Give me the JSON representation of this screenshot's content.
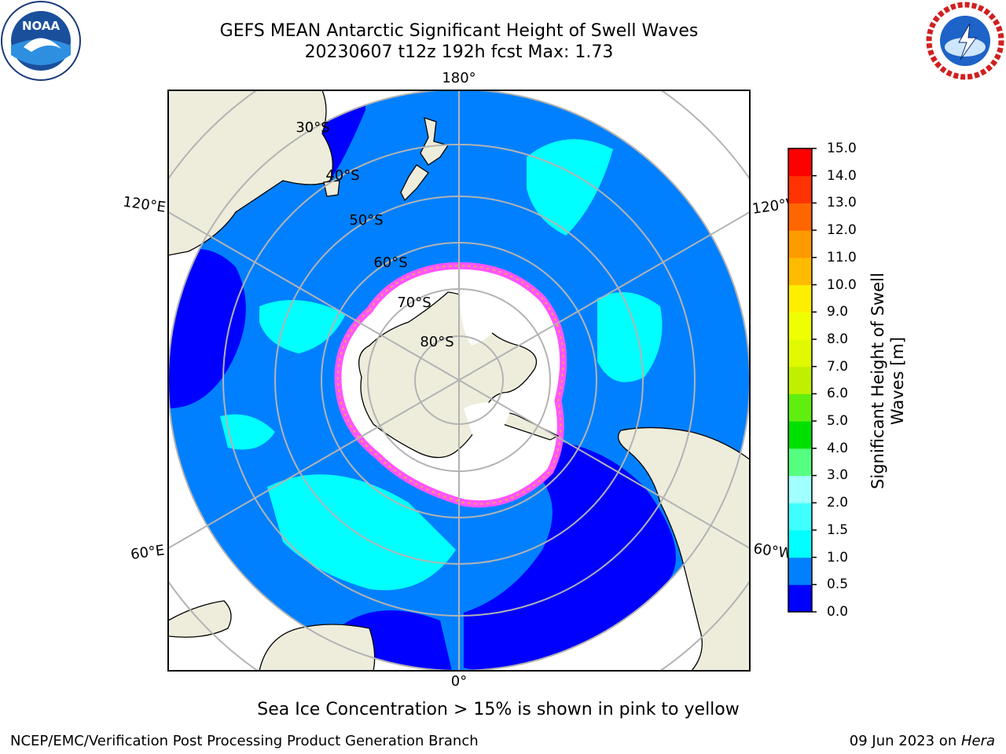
{
  "title": {
    "line1": "GEFS MEAN Antarctic Significant Height of Swell Waves",
    "line2": "20230607 t12z 192h fcst   Max: 1.73"
  },
  "map": {
    "projection": "south-polar-stereographic",
    "lon_labels": {
      "top": "180°",
      "bottom": "0°",
      "upper_left": "120°E",
      "upper_right": "120°W",
      "lower_left": "60°E",
      "lower_right": "60°W"
    },
    "lat_labels": [
      "30°S",
      "40°S",
      "50°S",
      "60°S",
      "70°S",
      "80°S"
    ],
    "colors": {
      "land": "#eeeddc",
      "ice_shelf": "#ffffff",
      "sea_ice_edge": "#ff55ff",
      "sea_ice_inner": "#ffaa44",
      "grid": "#b3b3b3",
      "coast": "#000000"
    }
  },
  "colorbar": {
    "label": "Significant Height of Swell Waves [m]",
    "ticks": [
      "15.0",
      "14.0",
      "13.0",
      "12.0",
      "11.0",
      "10.0",
      "9.0",
      "8.0",
      "7.0",
      "6.0",
      "5.0",
      "4.0",
      "3.0",
      "2.0",
      "1.5",
      "1.0",
      "0.5",
      "0.0"
    ],
    "bins": [
      {
        "range": "0.0-0.5",
        "color": "#0000ff"
      },
      {
        "range": "0.5-1.0",
        "color": "#0080ff"
      },
      {
        "range": "1.0-1.5",
        "color": "#00ffff"
      },
      {
        "range": "1.5-2.0",
        "color": "#40ffff"
      },
      {
        "range": "2.0-3.0",
        "color": "#a0ffff"
      },
      {
        "range": "3.0-4.0",
        "color": "#55ff80"
      },
      {
        "range": "4.0-5.0",
        "color": "#00e000"
      },
      {
        "range": "5.0-6.0",
        "color": "#60ee10"
      },
      {
        "range": "6.0-7.0",
        "color": "#c0f000"
      },
      {
        "range": "7.0-8.0",
        "color": "#e0f800"
      },
      {
        "range": "8.0-9.0",
        "color": "#f0ff00"
      },
      {
        "range": "9.0-10.0",
        "color": "#ffee00"
      },
      {
        "range": "10.0-11.0",
        "color": "#ffbb00"
      },
      {
        "range": "11.0-12.0",
        "color": "#ff9900"
      },
      {
        "range": "12.0-13.0",
        "color": "#ff6600"
      },
      {
        "range": "13.0-14.0",
        "color": "#ff3300"
      },
      {
        "range": "14.0-15.0",
        "color": "#ff0000"
      }
    ]
  },
  "footer": {
    "note": "Sea Ice Concentration > 15% is shown in pink to yellow",
    "left": "NCEP/EMC/Verification Post Processing Product Generation Branch",
    "date": "09 Jun 2023 on ",
    "host": "Hera"
  },
  "logos": {
    "left": "NOAA",
    "right": "NATIONAL WEATHER SERVICE"
  }
}
